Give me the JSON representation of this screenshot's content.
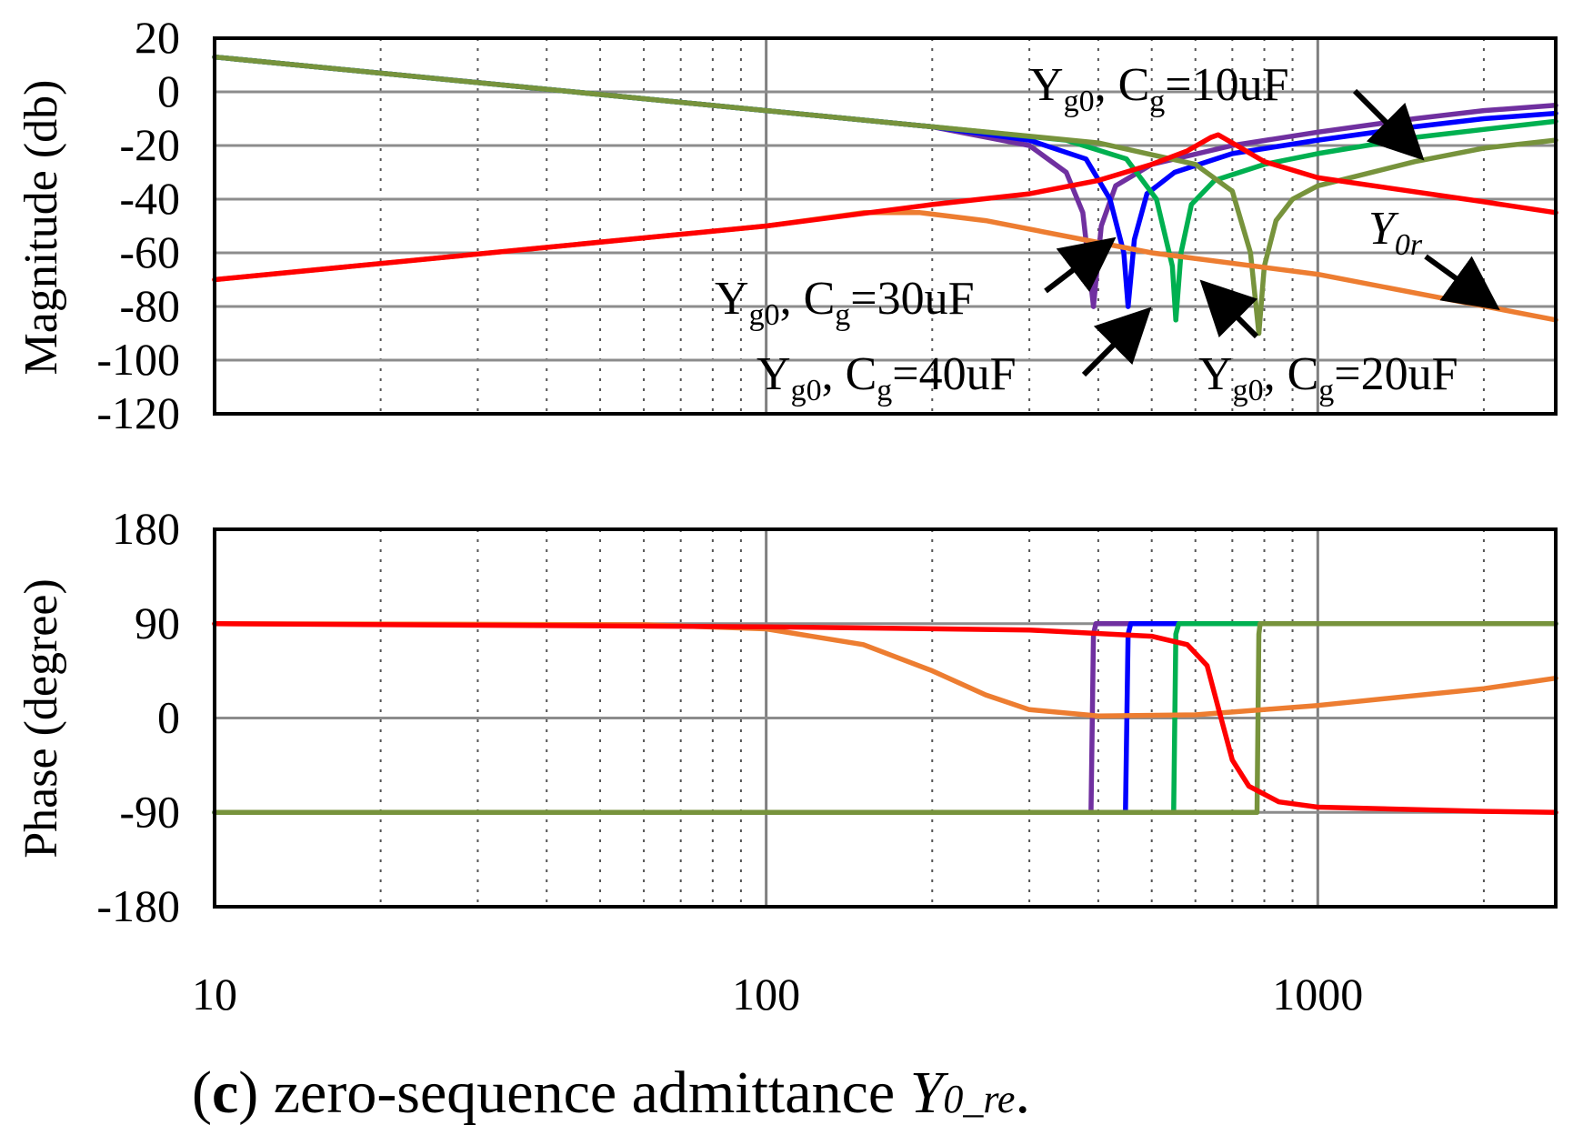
{
  "chart_data": {
    "type": "line",
    "xscale": "log",
    "xlim": [
      10,
      2700
    ],
    "x_tick_labels": [
      "10",
      "100",
      "1000"
    ],
    "caption": {
      "prefix": "(",
      "letter": "c",
      "middle": ") zero-sequence admittance ",
      "symbol": "Y",
      "subscript": "0_re",
      "end": "."
    },
    "colors": {
      "Cg30": "#7030a0",
      "Cg40": "#0000ff",
      "Cg20": "#00b050",
      "Cg10": "#77933c",
      "Y0r_orange": "#ed7d31",
      "red": "#ff0000"
    },
    "panels": [
      {
        "id": "magnitude",
        "ylabel": "Magnitude (db)",
        "ylim": [
          -120,
          20
        ],
        "yticks": [
          20,
          0,
          -20,
          -40,
          -60,
          -80,
          -100,
          -120
        ],
        "grid": true,
        "series": [
          {
            "key": "Cg30",
            "points": [
              [
                10,
                13
              ],
              [
                30,
                3.5
              ],
              [
                100,
                -7
              ],
              [
                200,
                -13
              ],
              [
                300,
                -20
              ],
              [
                350,
                -30
              ],
              [
                375,
                -45
              ],
              [
                392,
                -80
              ]
            ]
          },
          {
            "key": "Cg30",
            "points": [
              [
                392,
                -80
              ],
              [
                405,
                -50
              ],
              [
                430,
                -35
              ],
              [
                500,
                -27
              ],
              [
                700,
                -20
              ],
              [
                1000,
                -15
              ],
              [
                1500,
                -10
              ],
              [
                2000,
                -7
              ],
              [
                2700,
                -5
              ]
            ]
          },
          {
            "key": "Cg40",
            "points": [
              [
                10,
                13
              ],
              [
                100,
                -7
              ],
              [
                200,
                -13
              ],
              [
                300,
                -18
              ],
              [
                380,
                -25
              ],
              [
                420,
                -40
              ],
              [
                445,
                -60
              ],
              [
                453,
                -80
              ]
            ]
          },
          {
            "key": "Cg40",
            "points": [
              [
                453,
                -80
              ],
              [
                465,
                -55
              ],
              [
                490,
                -38
              ],
              [
                550,
                -30
              ],
              [
                700,
                -23
              ],
              [
                1000,
                -18
              ],
              [
                1500,
                -13
              ],
              [
                2000,
                -10
              ],
              [
                2700,
                -8
              ]
            ]
          },
          {
            "key": "Cg20",
            "points": [
              [
                10,
                13
              ],
              [
                100,
                -7
              ],
              [
                200,
                -13
              ],
              [
                350,
                -18
              ],
              [
                450,
                -25
              ],
              [
                510,
                -40
              ],
              [
                545,
                -65
              ],
              [
                553,
                -85
              ]
            ]
          },
          {
            "key": "Cg20",
            "points": [
              [
                553,
                -85
              ],
              [
                565,
                -60
              ],
              [
                590,
                -42
              ],
              [
                650,
                -33
              ],
              [
                800,
                -27
              ],
              [
                1000,
                -23
              ],
              [
                1500,
                -17
              ],
              [
                2000,
                -14
              ],
              [
                2700,
                -11
              ]
            ]
          },
          {
            "key": "Cg10",
            "points": [
              [
                10,
                13
              ],
              [
                100,
                -7
              ],
              [
                200,
                -13
              ],
              [
                400,
                -19
              ],
              [
                600,
                -27
              ],
              [
                700,
                -37
              ],
              [
                755,
                -60
              ],
              [
                782,
                -90
              ]
            ]
          },
          {
            "key": "Cg10",
            "points": [
              [
                782,
                -90
              ],
              [
                800,
                -65
              ],
              [
                840,
                -48
              ],
              [
                900,
                -40
              ],
              [
                1000,
                -35
              ],
              [
                1500,
                -26
              ],
              [
                2000,
                -21
              ],
              [
                2700,
                -18
              ]
            ]
          },
          {
            "key": "Y0r_orange",
            "points": [
              [
                10,
                -70
              ],
              [
                100,
                -50
              ],
              [
                150,
                -45
              ],
              [
                190,
                -45
              ],
              [
                250,
                -48
              ],
              [
                500,
                -60
              ],
              [
                1000,
                -68
              ],
              [
                2700,
                -85
              ]
            ]
          },
          {
            "key": "red",
            "points": [
              [
                10,
                -70
              ],
              [
                100,
                -50
              ],
              [
                200,
                -42
              ],
              [
                300,
                -38
              ],
              [
                400,
                -33
              ],
              [
                500,
                -27
              ],
              [
                580,
                -22
              ],
              [
                640,
                -17
              ],
              [
                660,
                -16
              ],
              [
                700,
                -19
              ],
              [
                800,
                -26
              ],
              [
                1000,
                -32
              ],
              [
                2000,
                -41
              ],
              [
                2700,
                -45
              ]
            ]
          }
        ],
        "annotations": [
          {
            "main": "Y",
            "sub": "g0",
            "mid": ", C",
            "sub2": "g",
            "value": "=10uF"
          },
          {
            "main": "Y",
            "sub": "g0",
            "mid": ", C",
            "sub2": "g",
            "value": "=30uF"
          },
          {
            "main": "Y",
            "sub": "g0",
            "mid": ", C",
            "sub2": "g",
            "value": "=40uF"
          },
          {
            "main": "Y",
            "sub": "g0",
            "mid": ", C",
            "sub2": "g",
            "value": "=20uF"
          },
          {
            "main": "Y",
            "sub": "0r"
          }
        ]
      },
      {
        "id": "phase",
        "ylabel": "Phase (degree)",
        "ylim": [
          -180,
          180
        ],
        "yticks": [
          180,
          90,
          0,
          -90,
          -180
        ],
        "grid": true,
        "series": [
          {
            "key": "Cg30",
            "points": [
              [
                10,
                -90
              ],
              [
                388,
                -90
              ],
              [
                392,
                80
              ],
              [
                396,
                90
              ],
              [
                2700,
                90
              ]
            ]
          },
          {
            "key": "Cg40",
            "points": [
              [
                10,
                -90
              ],
              [
                448,
                -90
              ],
              [
                453,
                80
              ],
              [
                458,
                90
              ],
              [
                2700,
                90
              ]
            ]
          },
          {
            "key": "Cg20",
            "points": [
              [
                10,
                -90
              ],
              [
                548,
                -90
              ],
              [
                553,
                80
              ],
              [
                560,
                90
              ],
              [
                2700,
                90
              ]
            ]
          },
          {
            "key": "Cg10",
            "points": [
              [
                10,
                -90
              ],
              [
                776,
                -90
              ],
              [
                782,
                80
              ],
              [
                786,
                90
              ],
              [
                2700,
                90
              ]
            ]
          },
          {
            "key": "Y0r_orange",
            "points": [
              [
                10,
                90
              ],
              [
                60,
                89
              ],
              [
                100,
                85
              ],
              [
                150,
                70
              ],
              [
                200,
                45
              ],
              [
                250,
                22
              ],
              [
                300,
                8
              ],
              [
                400,
                2
              ],
              [
                600,
                3
              ],
              [
                1000,
                12
              ],
              [
                2000,
                28
              ],
              [
                2700,
                38
              ]
            ]
          },
          {
            "key": "red",
            "points": [
              [
                10,
                90
              ],
              [
                100,
                87
              ],
              [
                300,
                84
              ],
              [
                500,
                78
              ],
              [
                580,
                70
              ],
              [
                630,
                50
              ],
              [
                660,
                10
              ],
              [
                700,
                -40
              ],
              [
                750,
                -65
              ],
              [
                850,
                -80
              ],
              [
                1000,
                -85
              ],
              [
                2000,
                -89
              ],
              [
                2700,
                -90
              ]
            ]
          }
        ]
      }
    ]
  }
}
